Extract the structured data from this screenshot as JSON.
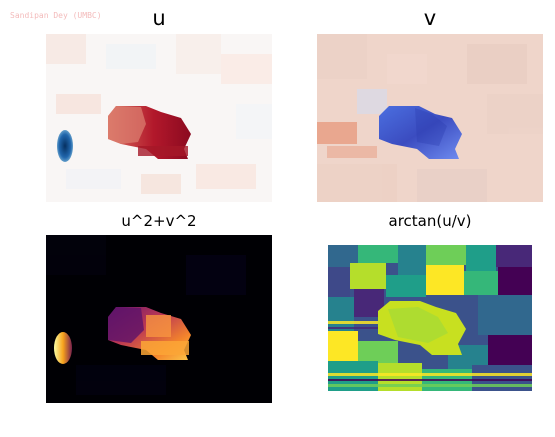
{
  "watermark": "Sandipan Dey (UMBC)",
  "panels": [
    {
      "id": "u",
      "title": "u",
      "colormap": "RdBu_r"
    },
    {
      "id": "v",
      "title": "v",
      "colormap": "coolwarm"
    },
    {
      "id": "mag",
      "title": "u^2+v^2",
      "colormap": "inferno"
    },
    {
      "id": "angle",
      "title": "arctan(u/v)",
      "colormap": "viridis"
    }
  ],
  "colors": {
    "background": "#ffffff",
    "title": "#000000",
    "watermark": "#f2b4b4"
  }
}
